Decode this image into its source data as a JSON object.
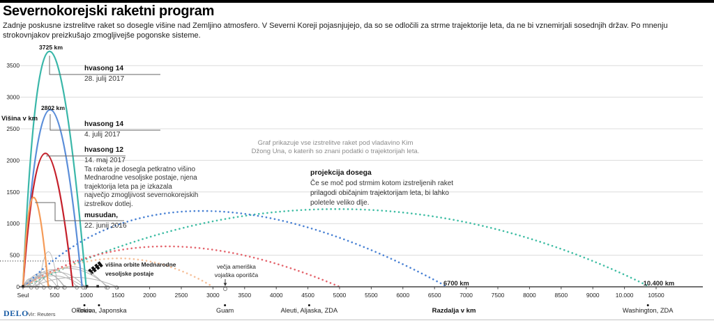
{
  "page": {
    "title": "Severnokorejski raketni program",
    "subtitle": "Zadnje poskusne izstrelitve raket so dosegle višine nad Zemljino atmosfero. V Severni Koreji pojasnjujejo, da so se odločili za strme trajektorije leta, da ne bi vznemirjali sosednjih držav. Po mnenju strokovnjakov preizkušajo zmogljivejše pogonske sisteme.",
    "source_logo": "DELO",
    "source_credit": "Vir: Reuters"
  },
  "annotations": {
    "graph_note": "Graf prikazuje vse izstrelitve raket pod vladavino Kim\nDžong Una, o katerih so znani podatki o trajektorijah leta.",
    "projection_title": "projekcija dosega",
    "projection_body": "Če se moč pod strmim kotom izstreljenih raket\nprilagodi običajnim trajektorijam leta, bi lahko\npoletele veliko dlje.",
    "iss_label": "višina orbite Mednarodne\nvesoljske postaje",
    "us_bases_label": "večja ameriška\nvojaška oporišča"
  },
  "chart_data": {
    "type": "line",
    "xlabel": "Razdalja v km",
    "ylabel": "Višina v km",
    "x_tick_labels": [
      "Seul",
      "500",
      "1000",
      "1500",
      "2000",
      "2500",
      "3000",
      "3500",
      "4000",
      "4500",
      "5000",
      "5500",
      "6000",
      "6500",
      "7000",
      "7500",
      "8000",
      "8500",
      "9000",
      "10.000",
      "10500"
    ],
    "x_tick_values": [
      0,
      500,
      1000,
      1500,
      2000,
      2500,
      3000,
      3500,
      4000,
      4500,
      5000,
      5500,
      6000,
      6500,
      7000,
      7500,
      8000,
      8500,
      9000,
      10000,
      10500
    ],
    "y_ticks": [
      0,
      500,
      1000,
      1500,
      2000,
      2500,
      3000,
      3500
    ],
    "ylim": [
      0,
      3900
    ],
    "grid": true,
    "iss_orbit_km": 408,
    "launches": [
      {
        "name": "hvasong 14",
        "date": "28. julij 2017",
        "apogee_km": 3725,
        "apex_label": "3725 km",
        "range_km": 998,
        "color": "#3ab7a9",
        "proj_color": "#3fbda4",
        "projection_km": 10400,
        "projection_label": "10.400 km",
        "projection_peak_km": 1230
      },
      {
        "name": "hvasong 14",
        "date": "4. julij 2017",
        "apogee_km": 2802,
        "apex_label": "2802 km",
        "range_km": 933,
        "color": "#5b8ed9",
        "proj_color": "#4a82d4",
        "projection_km": 6700,
        "projection_label": "6700 km",
        "projection_peak_km": 1200
      },
      {
        "name": "hvasong 12",
        "date": "14. maj 2017",
        "apogee_km": 2111,
        "range_km": 787,
        "color": "#c5202b",
        "proj_color": "#e4646c",
        "projection_km": 5000,
        "projection_peak_km": 640,
        "description": "Ta raketa je dosegla petkratno višino\nMednarodne vesoljske postaje, njena\ntrajektorija leta pa je izkazala\nnajvečjo zmogljivost severnokorejskih\nizstrelkov dotlej."
      },
      {
        "name": "musudan,",
        "date": "22. junij 2016",
        "apogee_km": 1414,
        "range_km": 400,
        "color": "#f59b58",
        "proj_color": "#f6c09a",
        "projection_km": 3000,
        "projection_peak_km": 450
      }
    ],
    "other_launches": [
      {
        "start_km": 0,
        "range_km": 130,
        "apogee_km": 70
      },
      {
        "start_km": 0,
        "range_km": 220,
        "apogee_km": 130
      },
      {
        "start_km": 10,
        "range_km": 320,
        "apogee_km": 100
      },
      {
        "start_km": 30,
        "range_km": 400,
        "apogee_km": 165
      },
      {
        "start_km": 60,
        "range_km": 480,
        "apogee_km": 175
      },
      {
        "start_km": 90,
        "range_km": 560,
        "apogee_km": 210
      },
      {
        "start_km": 250,
        "range_km": 300,
        "apogee_km": 555
      },
      {
        "start_km": 0,
        "range_km": 660,
        "apogee_km": 230
      },
      {
        "start_km": 70,
        "range_km": 780,
        "apogee_km": 270
      },
      {
        "start_km": 140,
        "range_km": 840,
        "apogee_km": 230
      },
      {
        "start_km": 0,
        "range_km": 950,
        "apogee_km": 175
      },
      {
        "start_km": 200,
        "range_km": 1120,
        "apogee_km": 320
      },
      {
        "start_km": 40,
        "range_km": 1300,
        "apogee_km": 295
      },
      {
        "start_km": 150,
        "range_km": 1330,
        "apogee_km": 150
      }
    ],
    "axis_square_markers_km": [
      0,
      1010,
      1180
    ],
    "cities": [
      {
        "name": "Tokio",
        "km": 970
      },
      {
        "name": "Okinava, Japonska",
        "km": 1200
      },
      {
        "name": "Guam",
        "km": 3190
      },
      {
        "name": "Aleuti, Aljaska, ZDA",
        "km": 4520
      },
      {
        "name": "Washington, ZDA",
        "km": 10370
      }
    ],
    "us_bases_marker_km": 3190
  }
}
